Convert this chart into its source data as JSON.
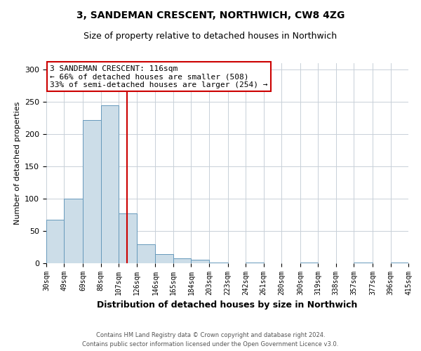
{
  "title": "3, SANDEMAN CRESCENT, NORTHWICH, CW8 4ZG",
  "subtitle": "Size of property relative to detached houses in Northwich",
  "xlabel": "Distribution of detached houses by size in Northwich",
  "ylabel": "Number of detached properties",
  "footer_line1": "Contains HM Land Registry data © Crown copyright and database right 2024.",
  "footer_line2": "Contains public sector information licensed under the Open Government Licence v3.0.",
  "bin_edges": [
    30,
    49,
    69,
    88,
    107,
    126,
    146,
    165,
    184,
    203,
    223,
    242,
    261,
    280,
    300,
    319,
    338,
    357,
    377,
    396,
    415
  ],
  "bin_counts": [
    67,
    100,
    222,
    245,
    77,
    29,
    14,
    8,
    5,
    1,
    0,
    1,
    0,
    0,
    1,
    0,
    0,
    1,
    0,
    1
  ],
  "bar_color": "#ccdde8",
  "bar_edgecolor": "#6699bb",
  "vline_x": 116,
  "vline_color": "#cc0000",
  "ylim": [
    0,
    310
  ],
  "yticks": [
    0,
    50,
    100,
    150,
    200,
    250,
    300
  ],
  "annotation_line1": "3 SANDEMAN CRESCENT: 116sqm",
  "annotation_line2": "← 66% of detached houses are smaller (508)",
  "annotation_line3": "33% of semi-detached houses are larger (254) →",
  "annotation_box_color": "#ffffff",
  "annotation_box_edgecolor": "#cc0000",
  "tick_labels": [
    "30sqm",
    "49sqm",
    "69sqm",
    "88sqm",
    "107sqm",
    "126sqm",
    "146sqm",
    "165sqm",
    "184sqm",
    "203sqm",
    "223sqm",
    "242sqm",
    "261sqm",
    "280sqm",
    "300sqm",
    "319sqm",
    "338sqm",
    "357sqm",
    "377sqm",
    "396sqm",
    "415sqm"
  ],
  "background_color": "#ffffff",
  "grid_color": "#c8d0d8",
  "title_fontsize": 10,
  "subtitle_fontsize": 9,
  "ylabel_fontsize": 8,
  "xlabel_fontsize": 9,
  "tick_fontsize": 7,
  "footer_fontsize": 6,
  "ann_fontsize": 8
}
